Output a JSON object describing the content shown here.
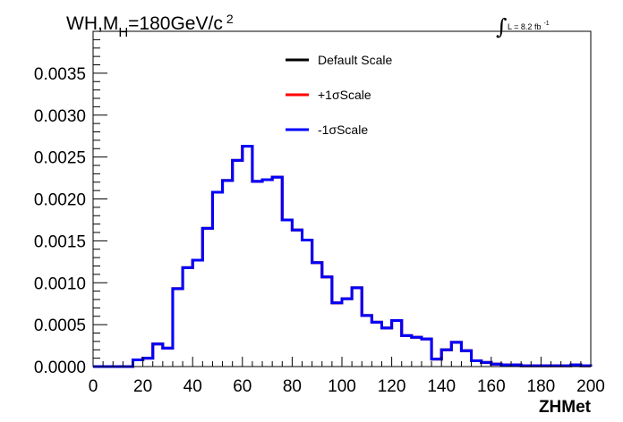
{
  "chart_data": {
    "type": "line",
    "histogram": true,
    "title": "WH,M",
    "title_sub": "H",
    "title_rest": "=180GeV/c",
    "title_sup": "2",
    "lumi_prefix": "L = 8.2 fb",
    "lumi_sup": "-1",
    "xlabel": "ZHMet",
    "xlim": [
      0,
      200
    ],
    "ylim": [
      0,
      0.004
    ],
    "x_ticks": [
      0,
      20,
      40,
      60,
      80,
      100,
      120,
      140,
      160,
      180,
      200
    ],
    "y_ticks": [
      "0.0000",
      "0.0005",
      "0.0010",
      "0.0015",
      "0.0020",
      "0.0025",
      "0.0030",
      "0.0035"
    ],
    "bin_width": 4,
    "legend_position": "top-center",
    "series": [
      {
        "name": "Default Scale",
        "color": "#000000"
      },
      {
        "name": "+1σScale",
        "color": "#ff0000"
      },
      {
        "name": "-1σScale",
        "color": "#0000ff"
      }
    ],
    "bin_edges_start": 0,
    "values": [
      0,
      0,
      0,
      0,
      8e-05,
      0.0001,
      0.00027,
      0.00022,
      0.00093,
      0.00118,
      0.00127,
      0.00165,
      0.00208,
      0.00222,
      0.00246,
      0.00263,
      0.00221,
      0.00223,
      0.00226,
      0.00175,
      0.00163,
      0.00151,
      0.00124,
      0.00107,
      0.00076,
      0.00081,
      0.00094,
      0.00061,
      0.00053,
      0.00046,
      0.00055,
      0.00037,
      0.00035,
      0.00033,
      9e-05,
      0.0002,
      0.00029,
      0.00019,
      7e-05,
      5e-05,
      3e-05,
      2e-05,
      2e-05,
      1e-05,
      1e-05,
      1e-05,
      1e-05,
      1e-05,
      2e-05,
      1e-05
    ]
  }
}
